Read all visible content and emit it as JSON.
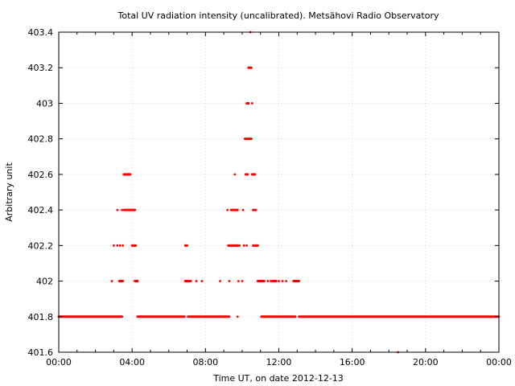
{
  "chart_data": {
    "type": "scatter",
    "title": "Total UV radiation intensity (uncalibrated). Metsähovi Radio Observatory",
    "xlabel": "Time UT, on date 2012-12-13",
    "ylabel": "Arbitrary unit",
    "xlim": [
      0,
      24
    ],
    "ylim": [
      401.6,
      403.4
    ],
    "x_unit": "hours",
    "x_ticks": [
      0,
      4,
      8,
      12,
      16,
      20,
      24
    ],
    "x_tick_labels": [
      "00:00",
      "04:00",
      "08:00",
      "12:00",
      "16:00",
      "20:00",
      "00:00"
    ],
    "y_ticks": [
      401.6,
      401.8,
      402.0,
      402.2,
      402.4,
      402.6,
      402.8,
      403.0,
      403.2,
      403.4
    ],
    "y_tick_labels": [
      "401.6",
      "401.8",
      "402",
      "402.2",
      "402.4",
      "402.6",
      "402.8",
      "403",
      "403.2",
      "403.4"
    ],
    "grid": true,
    "marker_color": "#ff0000",
    "levels": [
      {
        "y": 401.8,
        "segments": [
          [
            0.0,
            3.45
          ],
          [
            4.3,
            6.85
          ],
          [
            7.05,
            9.3
          ],
          [
            11.05,
            12.9
          ],
          [
            13.1,
            24.0
          ]
        ],
        "points": [
          9.75
        ]
      },
      {
        "y": 402.0,
        "segments": [
          [
            3.3,
            3.5
          ],
          [
            4.15,
            4.3
          ],
          [
            6.9,
            7.2
          ],
          [
            10.85,
            11.2
          ],
          [
            11.65,
            11.85
          ],
          [
            12.8,
            13.1
          ]
        ],
        "points": [
          2.9,
          7.5,
          7.8,
          8.8,
          9.3,
          9.8,
          10.0,
          11.4,
          11.55,
          12.0,
          12.2,
          12.4
        ]
      },
      {
        "y": 402.2,
        "segments": [
          [
            9.25,
            9.85
          ],
          [
            10.6,
            10.85
          ],
          [
            4.0,
            4.2
          ],
          [
            6.9,
            7.0
          ]
        ],
        "points": [
          3.0,
          3.2,
          3.35,
          3.5,
          10.1,
          10.25
        ]
      },
      {
        "y": 402.4,
        "segments": [
          [
            3.55,
            3.95
          ],
          [
            4.0,
            4.15
          ],
          [
            9.4,
            9.75
          ],
          [
            10.6,
            10.75
          ]
        ],
        "points": [
          3.2,
          3.45,
          9.2,
          10.05
        ]
      },
      {
        "y": 402.6,
        "segments": [
          [
            3.55,
            3.9
          ],
          [
            10.2,
            10.3
          ],
          [
            10.55,
            10.7
          ]
        ],
        "points": [
          9.6
        ]
      },
      {
        "y": 402.8,
        "segments": [
          [
            10.15,
            10.5
          ]
        ],
        "points": []
      },
      {
        "y": 403.0,
        "segments": [
          [
            10.25,
            10.35
          ]
        ],
        "points": [
          10.55
        ]
      },
      {
        "y": 403.2,
        "segments": [
          [
            10.35,
            10.5
          ]
        ],
        "points": []
      },
      {
        "y": 403.4,
        "segments": [],
        "points": [
          10.45
        ]
      },
      {
        "y": 401.6,
        "segments": [],
        "points": [
          18.5
        ]
      }
    ]
  }
}
